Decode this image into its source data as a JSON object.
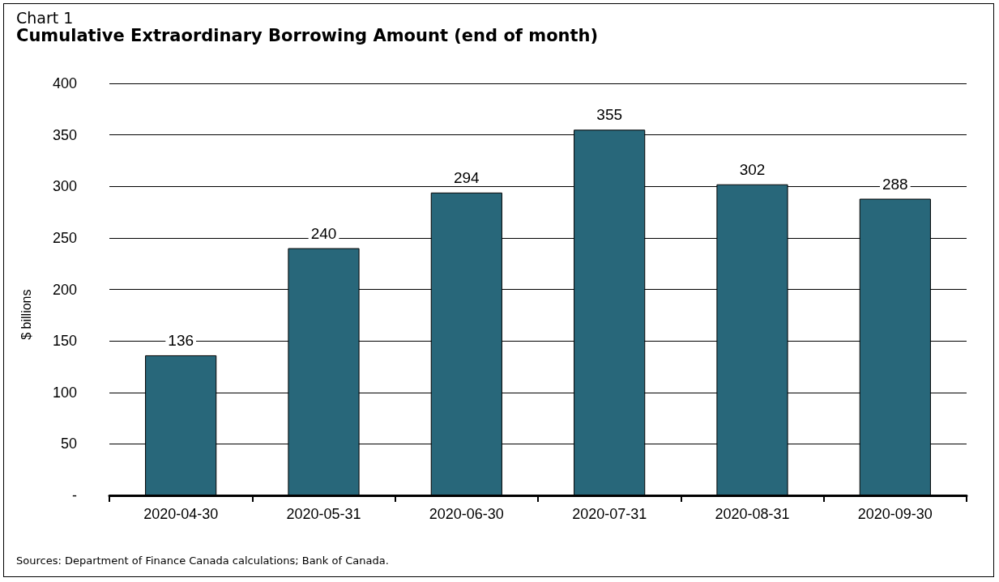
{
  "chart_data": {
    "type": "bar",
    "subtitle": "Chart 1",
    "title": "Cumulative Extraordinary Borrowing Amount (end of month)",
    "ylabel": "$ billions",
    "categories": [
      "2020-04-30",
      "2020-05-31",
      "2020-06-30",
      "2020-07-31",
      "2020-08-31",
      "2020-09-30"
    ],
    "values": [
      136,
      240,
      294,
      355,
      302,
      288
    ],
    "color": "#28677a",
    "data_labels": true,
    "ylim": [
      0,
      400
    ],
    "yticks": [
      {
        "value": 0,
        "label": "-"
      },
      50,
      100,
      150,
      200,
      250,
      300,
      350,
      400
    ],
    "grid": "y",
    "annotations": [
      "Sources: Department of Finance Canada calculations; Bank of Canada."
    ]
  }
}
